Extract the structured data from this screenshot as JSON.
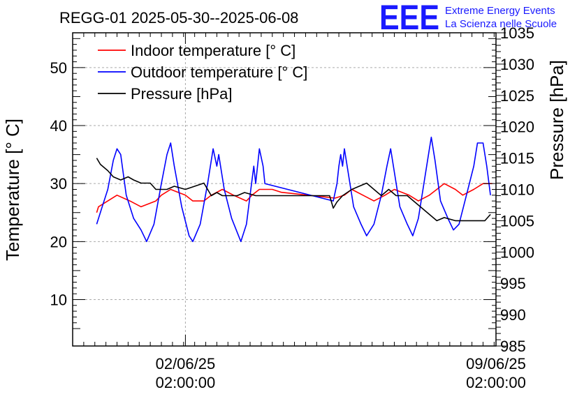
{
  "chart_data": {
    "type": "line",
    "title": "REGG-01 2025-05-30--2025-06-08",
    "ylabel": "Temperature [° C]",
    "y2label": "Pressure [hPa]",
    "xlabel": "",
    "ylim": [
      2,
      56
    ],
    "y2lim": [
      985,
      1035
    ],
    "xlim": [
      "2025-05-30 13:00",
      "2025-06-09 02:00"
    ],
    "grid": true,
    "legend_position": "top-left",
    "yticks": [
      10,
      20,
      30,
      40,
      50
    ],
    "y2ticks": [
      985,
      990,
      995,
      1000,
      1005,
      1010,
      1015,
      1020,
      1025,
      1030,
      1035
    ],
    "xticks": [
      {
        "x": "2025-06-02 02:00",
        "date_label": "02/06/25",
        "time_label": "02:00:00"
      },
      {
        "x": "2025-06-09 02:00",
        "date_label": "09/06/25",
        "time_label": "02:00:00"
      }
    ],
    "series": [
      {
        "name": "Indoor temperature [° C]",
        "color": "#ff0000",
        "axis": "left",
        "points": [
          [
            "2025-05-31 02:00",
            25
          ],
          [
            "2025-05-31 03:00",
            26
          ],
          [
            "2025-05-31 08:00",
            27
          ],
          [
            "2025-05-31 13:00",
            28
          ],
          [
            "2025-05-31 20:00",
            27
          ],
          [
            "2025-06-01 02:00",
            26
          ],
          [
            "2025-06-01 10:00",
            27
          ],
          [
            "2025-06-01 13:00",
            28
          ],
          [
            "2025-06-01 18:00",
            29
          ],
          [
            "2025-06-02 02:00",
            28
          ],
          [
            "2025-06-02 06:00",
            27
          ],
          [
            "2025-06-02 12:00",
            27
          ],
          [
            "2025-06-02 16:00",
            28
          ],
          [
            "2025-06-02 22:00",
            29
          ],
          [
            "2025-06-03 04:00",
            28
          ],
          [
            "2025-06-03 11:00",
            27
          ],
          [
            "2025-06-03 14:00",
            28
          ],
          [
            "2025-06-03 18:00",
            29
          ],
          [
            "2025-06-04 01:00",
            29
          ],
          [
            "2025-06-04 06:00",
            28.5
          ],
          [
            "2025-06-05 11:00",
            27.5
          ],
          [
            "2025-06-05 16:00",
            28
          ],
          [
            "2025-06-05 20:00",
            29
          ],
          [
            "2025-06-06 02:00",
            28
          ],
          [
            "2025-06-06 08:00",
            27
          ],
          [
            "2025-06-06 14:00",
            28
          ],
          [
            "2025-06-06 19:00",
            29
          ],
          [
            "2025-06-07 03:00",
            28
          ],
          [
            "2025-06-07 08:00",
            27
          ],
          [
            "2025-06-07 14:00",
            28
          ],
          [
            "2025-06-07 18:00",
            29
          ],
          [
            "2025-06-07 22:00",
            30
          ],
          [
            "2025-06-08 04:00",
            29
          ],
          [
            "2025-06-08 08:00",
            28
          ],
          [
            "2025-06-08 14:00",
            29
          ],
          [
            "2025-06-08 19:00",
            30
          ],
          [
            "2025-06-09 00:00",
            30
          ]
        ]
      },
      {
        "name": "Outdoor temperature [° C]",
        "color": "#0000ff",
        "axis": "left",
        "points": [
          [
            "2025-05-31 02:00",
            23
          ],
          [
            "2025-05-31 05:00",
            26
          ],
          [
            "2025-05-31 08:00",
            29
          ],
          [
            "2025-05-31 11:00",
            34
          ],
          [
            "2025-05-31 13:00",
            36
          ],
          [
            "2025-05-31 15:00",
            35
          ],
          [
            "2025-05-31 18:00",
            28
          ],
          [
            "2025-05-31 22:00",
            24
          ],
          [
            "2025-06-01 02:00",
            22
          ],
          [
            "2025-06-01 05:00",
            20
          ],
          [
            "2025-06-01 09:00",
            23
          ],
          [
            "2025-06-01 13:00",
            30
          ],
          [
            "2025-06-01 16:00",
            35
          ],
          [
            "2025-06-01 18:00",
            37
          ],
          [
            "2025-06-01 20:00",
            33
          ],
          [
            "2025-06-02 00:00",
            26
          ],
          [
            "2025-06-02 04:00",
            21
          ],
          [
            "2025-06-02 06:00",
            20
          ],
          [
            "2025-06-02 10:00",
            23
          ],
          [
            "2025-06-02 14:00",
            30
          ],
          [
            "2025-06-02 17:00",
            36
          ],
          [
            "2025-06-02 19:00",
            33
          ],
          [
            "2025-06-02 20:00",
            35
          ],
          [
            "2025-06-02 23:00",
            29
          ],
          [
            "2025-06-03 03:00",
            24
          ],
          [
            "2025-06-03 08:00",
            20
          ],
          [
            "2025-06-03 11:00",
            23
          ],
          [
            "2025-06-03 13:00",
            28
          ],
          [
            "2025-06-03 15:00",
            33
          ],
          [
            "2025-06-03 16:00",
            30
          ],
          [
            "2025-06-03 18:00",
            36
          ],
          [
            "2025-06-03 20:00",
            33
          ],
          [
            "2025-06-03 21:00",
            30
          ],
          [
            "2025-06-05 10:00",
            27
          ],
          [
            "2025-06-05 12:00",
            30
          ],
          [
            "2025-06-05 13:00",
            33
          ],
          [
            "2025-06-05 14:00",
            35
          ],
          [
            "2025-06-05 15:00",
            33
          ],
          [
            "2025-06-05 16:00",
            36
          ],
          [
            "2025-06-05 18:00",
            32
          ],
          [
            "2025-06-05 21:00",
            26
          ],
          [
            "2025-06-06 01:00",
            23
          ],
          [
            "2025-06-06 04:00",
            21
          ],
          [
            "2025-06-06 08:00",
            23
          ],
          [
            "2025-06-06 12:00",
            28
          ],
          [
            "2025-06-06 15:00",
            33
          ],
          [
            "2025-06-06 17:00",
            36
          ],
          [
            "2025-06-06 19:00",
            32
          ],
          [
            "2025-06-06 22:00",
            26
          ],
          [
            "2025-06-07 02:00",
            23
          ],
          [
            "2025-06-07 05:00",
            21
          ],
          [
            "2025-06-07 08:00",
            24
          ],
          [
            "2025-06-07 11:00",
            30
          ],
          [
            "2025-06-07 14:00",
            36
          ],
          [
            "2025-06-07 15:00",
            38
          ],
          [
            "2025-06-07 17:00",
            34
          ],
          [
            "2025-06-07 20:00",
            27
          ],
          [
            "2025-06-08 00:00",
            24
          ],
          [
            "2025-06-08 03:00",
            22
          ],
          [
            "2025-06-08 06:00",
            23
          ],
          [
            "2025-06-08 10:00",
            28
          ],
          [
            "2025-06-08 14:00",
            33
          ],
          [
            "2025-06-08 16:00",
            37
          ],
          [
            "2025-06-08 19:00",
            37
          ],
          [
            "2025-06-08 21:00",
            33
          ],
          [
            "2025-06-08 23:00",
            28
          ]
        ]
      },
      {
        "name": "Pressure [hPa]",
        "color": "#000000",
        "axis": "right",
        "points": [
          [
            "2025-05-31 02:00",
            1015
          ],
          [
            "2025-05-31 04:00",
            1014
          ],
          [
            "2025-05-31 08:00",
            1013
          ],
          [
            "2025-05-31 11:00",
            1012
          ],
          [
            "2025-05-31 15:00",
            1011.5
          ],
          [
            "2025-05-31 19:00",
            1012
          ],
          [
            "2025-05-31 22:00",
            1011.5
          ],
          [
            "2025-06-01 02:00",
            1011
          ],
          [
            "2025-06-01 07:00",
            1011
          ],
          [
            "2025-06-01 10:00",
            1010
          ],
          [
            "2025-06-01 16:00",
            1010
          ],
          [
            "2025-06-01 20:00",
            1010.5
          ],
          [
            "2025-06-02 02:00",
            1010
          ],
          [
            "2025-06-02 07:00",
            1010.5
          ],
          [
            "2025-06-02 12:00",
            1011
          ],
          [
            "2025-06-02 16:00",
            1009
          ],
          [
            "2025-06-02 19:00",
            1009.5
          ],
          [
            "2025-06-02 22:00",
            1009
          ],
          [
            "2025-06-03 02:00",
            1009
          ],
          [
            "2025-06-03 06:00",
            1009
          ],
          [
            "2025-06-03 10:00",
            1009.5
          ],
          [
            "2025-06-03 16:00",
            1009
          ],
          [
            "2025-06-04 12:00",
            1009
          ],
          [
            "2025-06-05 08:00",
            1009
          ],
          [
            "2025-06-05 10:00",
            1007
          ],
          [
            "2025-06-05 12:00",
            1008
          ],
          [
            "2025-06-05 15:00",
            1009
          ],
          [
            "2025-06-05 20:00",
            1010
          ],
          [
            "2025-06-06 00:00",
            1010.5
          ],
          [
            "2025-06-06 04:00",
            1011
          ],
          [
            "2025-06-06 08:00",
            1010
          ],
          [
            "2025-06-06 12:00",
            1009
          ],
          [
            "2025-06-06 16:00",
            1010
          ],
          [
            "2025-06-06 20:00",
            1009
          ],
          [
            "2025-06-07 02:00",
            1009
          ],
          [
            "2025-06-07 06:00",
            1008
          ],
          [
            "2025-06-07 10:00",
            1007
          ],
          [
            "2025-06-07 14:00",
            1006
          ],
          [
            "2025-06-07 18:00",
            1005
          ],
          [
            "2025-06-07 22:00",
            1005.5
          ],
          [
            "2025-06-08 04:00",
            1005
          ],
          [
            "2025-06-08 10:00",
            1005
          ],
          [
            "2025-06-08 16:00",
            1005
          ],
          [
            "2025-06-08 20:00",
            1005
          ],
          [
            "2025-06-08 23:00",
            1006
          ]
        ]
      }
    ]
  },
  "logo": {
    "mark": "EEE",
    "line1": "Extreme Energy Events",
    "line2": "La Scienza nelle Scuole"
  },
  "colors": {
    "frame": "#000000",
    "grid": "#aaaaaa",
    "logo": "#1a1aff"
  }
}
